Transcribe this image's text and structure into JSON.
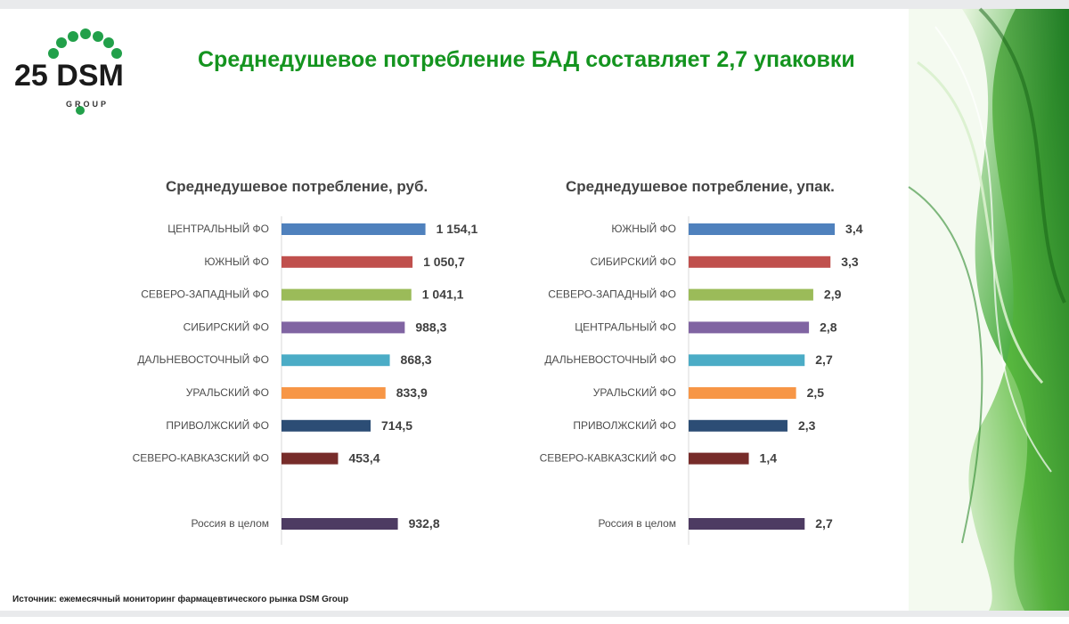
{
  "header": {
    "title": "Среднедушевое потребление БАД составляет 2,7 упаковки",
    "logo_text": "25 DSM",
    "logo_subtext": "GROUP"
  },
  "colors": {
    "title_green": "#14941f",
    "logo_dots": "#22a04a"
  },
  "chart_data": [
    {
      "type": "bar",
      "orientation": "horizontal",
      "title": "Среднедушевое потребление, руб.",
      "categories": [
        "ЦЕНТРАЛЬНЫЙ ФО",
        "ЮЖНЫЙ ФО",
        "СЕВЕРО-ЗАПАДНЫЙ ФО",
        "СИБИРСКИЙ ФО",
        "ДАЛЬНЕВОСТОЧНЫЙ ФО",
        "УРАЛЬСКИЙ ФО",
        "ПРИВОЛЖСКИЙ ФО",
        "СЕВЕРО-КАВКАЗСКИЙ ФО",
        "Россия в целом"
      ],
      "values": [
        1154.1,
        1050.7,
        1041.1,
        988.3,
        868.3,
        833.9,
        714.5,
        453.4,
        932.8
      ],
      "value_labels": [
        "1 154,1",
        "1 050,7",
        "1 041,1",
        "988,3",
        "868,3",
        "833,9",
        "714,5",
        "453,4",
        "932,8"
      ],
      "colors": [
        "#4f81bd",
        "#c0504d",
        "#9bbb59",
        "#8064a2",
        "#4bacc6",
        "#f79646",
        "#2c4d75",
        "#772c2a",
        "#4d3b62"
      ],
      "xlim": [
        0,
        1400
      ],
      "gap_before_last": true,
      "grid": false
    },
    {
      "type": "bar",
      "orientation": "horizontal",
      "title": "Среднедушевое потребление, упак.",
      "categories": [
        "ЮЖНЫЙ ФО",
        "СИБИРСКИЙ ФО",
        "СЕВЕРО-ЗАПАДНЫЙ ФО",
        "ЦЕНТРАЛЬНЫЙ ФО",
        "ДАЛЬНЕВОСТОЧНЫЙ ФО",
        "УРАЛЬСКИЙ ФО",
        "ПРИВОЛЖСКИЙ ФО",
        "СЕВЕРО-КАВКАЗСКИЙ ФО",
        "Россия в целом"
      ],
      "values": [
        3.4,
        3.3,
        2.9,
        2.8,
        2.7,
        2.5,
        2.3,
        1.4,
        2.7
      ],
      "value_labels": [
        "3,4",
        "3,3",
        "2,9",
        "2,8",
        "2,7",
        "2,5",
        "2,3",
        "1,4",
        "2,7"
      ],
      "colors": [
        "#4f81bd",
        "#c0504d",
        "#9bbb59",
        "#8064a2",
        "#4bacc6",
        "#f79646",
        "#2c4d75",
        "#772c2a",
        "#4d3b62"
      ],
      "xlim": [
        0,
        4.0
      ],
      "gap_before_last": true,
      "grid": false
    }
  ],
  "footer": {
    "source": "Источник: ежемесячный мониторинг фармацевтического рынка DSM Group"
  }
}
